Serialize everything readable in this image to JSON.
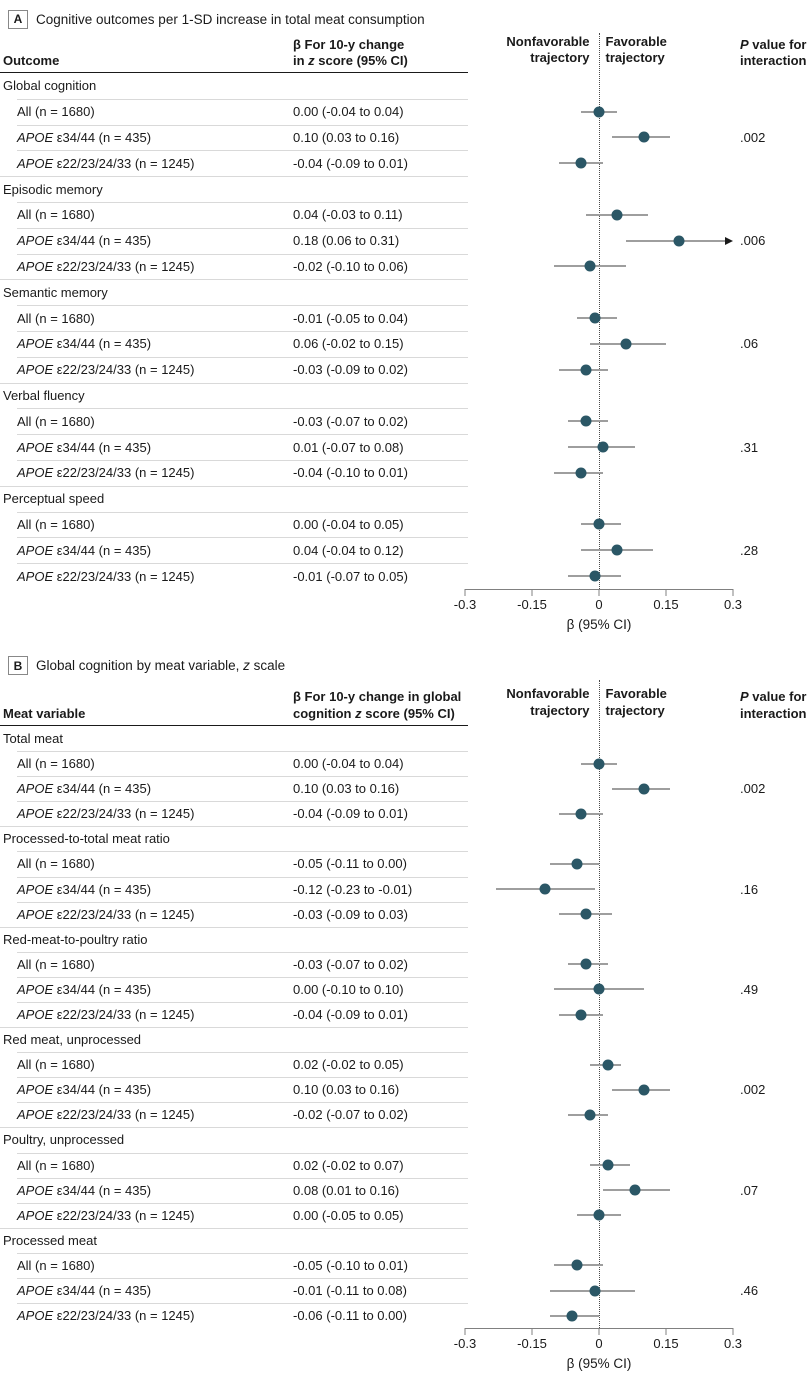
{
  "plot_headers": {
    "nonfavorable_line1": "Nonfavorable",
    "nonfavorable_line2": "trajectory",
    "favorable_line1": "Favorable",
    "favorable_line2": "trajectory",
    "p_line1_italic": "P",
    "p_line1_rest": " value for",
    "p_line2": "interaction"
  },
  "axis": {
    "min": -0.3,
    "max": 0.3,
    "ticks": [
      -0.3,
      -0.15,
      0,
      0.15,
      0.3
    ],
    "tick_labels": [
      "-0.3",
      "-0.15",
      "0",
      "0.15",
      "0.3"
    ],
    "label": "β (95% CI)",
    "zero_reference": 0
  },
  "colors": {
    "point": "#2b5766",
    "ci_line": "#9e9e9e",
    "arrowhead": "#1a1a1a",
    "separator": "#d9d9d9",
    "header_rule": "#1a1a1a",
    "zero_line": "#4a4a4a",
    "axis_line": "#808080"
  },
  "chart_data": [
    {
      "type": "scatter",
      "subtype": "forest-plot",
      "panel_label": "A",
      "title_pre": "Cognitive outcomes per 1-SD increase in total meat consumption",
      "title_italic": "",
      "title_post": "",
      "col1_header": "Outcome",
      "beta_line1": "β For 10-y change",
      "beta_line2_pre": "in ",
      "beta_line2_italic": "z",
      "beta_line2_post": " score (95% CI)",
      "xlim": [
        -0.3,
        0.3
      ],
      "groups": [
        {
          "name": "Global cognition",
          "rows": [
            {
              "label_italic": "",
              "label": "All (n = 1680)",
              "beta": "0.00 (-0.04 to 0.04)",
              "est": 0.0,
              "lo": -0.04,
              "hi": 0.04,
              "p": "",
              "arrow": false
            },
            {
              "label_italic": "APOE",
              "label": " ε34/44 (n = 435)",
              "beta": "0.10 (0.03 to 0.16)",
              "est": 0.1,
              "lo": 0.03,
              "hi": 0.16,
              "p": ".002",
              "arrow": false
            },
            {
              "label_italic": "APOE",
              "label": " ε22/23/24/33 (n = 1245)",
              "beta": "-0.04 (-0.09 to 0.01)",
              "est": -0.04,
              "lo": -0.09,
              "hi": 0.01,
              "p": "",
              "arrow": false
            }
          ]
        },
        {
          "name": "Episodic memory",
          "rows": [
            {
              "label_italic": "",
              "label": "All (n = 1680)",
              "beta": "0.04 (-0.03 to 0.11)",
              "est": 0.04,
              "lo": -0.03,
              "hi": 0.11,
              "p": "",
              "arrow": false
            },
            {
              "label_italic": "APOE",
              "label": " ε34/44 (n = 435)",
              "beta": "0.18 (0.06 to 0.31)",
              "est": 0.18,
              "lo": 0.06,
              "hi": 0.31,
              "p": ".006",
              "arrow": true
            },
            {
              "label_italic": "APOE",
              "label": " ε22/23/24/33 (n = 1245)",
              "beta": "-0.02 (-0.10 to 0.06)",
              "est": -0.02,
              "lo": -0.1,
              "hi": 0.06,
              "p": "",
              "arrow": false
            }
          ]
        },
        {
          "name": "Semantic memory",
          "rows": [
            {
              "label_italic": "",
              "label": "All (n = 1680)",
              "beta": "-0.01 (-0.05 to 0.04)",
              "est": -0.01,
              "lo": -0.05,
              "hi": 0.04,
              "p": "",
              "arrow": false
            },
            {
              "label_italic": "APOE",
              "label": " ε34/44 (n = 435)",
              "beta": "0.06 (-0.02 to 0.15)",
              "est": 0.06,
              "lo": -0.02,
              "hi": 0.15,
              "p": ".06",
              "arrow": false
            },
            {
              "label_italic": "APOE",
              "label": " ε22/23/24/33 (n = 1245)",
              "beta": "-0.03 (-0.09 to 0.02)",
              "est": -0.03,
              "lo": -0.09,
              "hi": 0.02,
              "p": "",
              "arrow": false
            }
          ]
        },
        {
          "name": "Verbal fluency",
          "rows": [
            {
              "label_italic": "",
              "label": "All (n = 1680)",
              "beta": "-0.03 (-0.07 to 0.02)",
              "est": -0.03,
              "lo": -0.07,
              "hi": 0.02,
              "p": "",
              "arrow": false
            },
            {
              "label_italic": "APOE",
              "label": " ε34/44 (n = 435)",
              "beta": "0.01 (-0.07 to 0.08)",
              "est": 0.01,
              "lo": -0.07,
              "hi": 0.08,
              "p": ".31",
              "arrow": false
            },
            {
              "label_italic": "APOE",
              "label": " ε22/23/24/33 (n = 1245)",
              "beta": "-0.04 (-0.10 to 0.01)",
              "est": -0.04,
              "lo": -0.1,
              "hi": 0.01,
              "p": "",
              "arrow": false
            }
          ]
        },
        {
          "name": "Perceptual speed",
          "rows": [
            {
              "label_italic": "",
              "label": "All (n = 1680)",
              "beta": "0.00 (-0.04 to 0.05)",
              "est": 0.0,
              "lo": -0.04,
              "hi": 0.05,
              "p": "",
              "arrow": false
            },
            {
              "label_italic": "APOE",
              "label": " ε34/44 (n = 435)",
              "beta": "0.04 (-0.04 to 0.12)",
              "est": 0.04,
              "lo": -0.04,
              "hi": 0.12,
              "p": ".28",
              "arrow": false
            },
            {
              "label_italic": "APOE",
              "label": " ε22/23/24/33 (n = 1245)",
              "beta": "-0.01 (-0.07 to 0.05)",
              "est": -0.01,
              "lo": -0.07,
              "hi": 0.05,
              "p": "",
              "arrow": false
            }
          ]
        }
      ]
    },
    {
      "type": "scatter",
      "subtype": "forest-plot",
      "panel_label": "B",
      "title_pre": "Global cognition by meat variable, ",
      "title_italic": "z",
      "title_post": " scale",
      "col1_header": "Meat variable",
      "beta_line1": "β For 10-y change in global",
      "beta_line2_pre": "cognition ",
      "beta_line2_italic": "z",
      "beta_line2_post": " score (95% CI)",
      "xlim": [
        -0.3,
        0.3
      ],
      "groups": [
        {
          "name": "Total meat",
          "rows": [
            {
              "label_italic": "",
              "label": "All (n = 1680)",
              "beta": "0.00 (-0.04 to 0.04)",
              "est": 0.0,
              "lo": -0.04,
              "hi": 0.04,
              "p": "",
              "arrow": false
            },
            {
              "label_italic": "APOE",
              "label": " ε34/44 (n = 435)",
              "beta": "0.10 (0.03 to 0.16)",
              "est": 0.1,
              "lo": 0.03,
              "hi": 0.16,
              "p": ".002",
              "arrow": false
            },
            {
              "label_italic": "APOE",
              "label": " ε22/23/24/33 (n = 1245)",
              "beta": "-0.04 (-0.09 to 0.01)",
              "est": -0.04,
              "lo": -0.09,
              "hi": 0.01,
              "p": "",
              "arrow": false
            }
          ]
        },
        {
          "name": "Processed-to-total meat ratio",
          "rows": [
            {
              "label_italic": "",
              "label": "All (n = 1680)",
              "beta": "-0.05 (-0.11 to 0.00)",
              "est": -0.05,
              "lo": -0.11,
              "hi": 0.0,
              "p": "",
              "arrow": false
            },
            {
              "label_italic": "APOE",
              "label": " ε34/44 (n = 435)",
              "beta": "-0.12 (-0.23 to -0.01)",
              "est": -0.12,
              "lo": -0.23,
              "hi": -0.01,
              "p": ".16",
              "arrow": false
            },
            {
              "label_italic": "APOE",
              "label": " ε22/23/24/33 (n = 1245)",
              "beta": "-0.03 (-0.09 to 0.03)",
              "est": -0.03,
              "lo": -0.09,
              "hi": 0.03,
              "p": "",
              "arrow": false
            }
          ]
        },
        {
          "name": "Red-meat-to-poultry ratio",
          "rows": [
            {
              "label_italic": "",
              "label": "All (n = 1680)",
              "beta": "-0.03 (-0.07 to 0.02)",
              "est": -0.03,
              "lo": -0.07,
              "hi": 0.02,
              "p": "",
              "arrow": false
            },
            {
              "label_italic": "APOE",
              "label": " ε34/44 (n = 435)",
              "beta": "0.00 (-0.10 to 0.10)",
              "est": 0.0,
              "lo": -0.1,
              "hi": 0.1,
              "p": ".49",
              "arrow": false
            },
            {
              "label_italic": "APOE",
              "label": " ε22/23/24/33 (n = 1245)",
              "beta": "-0.04 (-0.09 to 0.01)",
              "est": -0.04,
              "lo": -0.09,
              "hi": 0.01,
              "p": "",
              "arrow": false
            }
          ]
        },
        {
          "name": "Red meat, unprocessed",
          "rows": [
            {
              "label_italic": "",
              "label": "All (n = 1680)",
              "beta": "0.02 (-0.02 to 0.05)",
              "est": 0.02,
              "lo": -0.02,
              "hi": 0.05,
              "p": "",
              "arrow": false
            },
            {
              "label_italic": "APOE",
              "label": " ε34/44 (n = 435)",
              "beta": "0.10 (0.03 to 0.16)",
              "est": 0.1,
              "lo": 0.03,
              "hi": 0.16,
              "p": ".002",
              "arrow": false
            },
            {
              "label_italic": "APOE",
              "label": " ε22/23/24/33 (n = 1245)",
              "beta": "-0.02 (-0.07 to 0.02)",
              "est": -0.02,
              "lo": -0.07,
              "hi": 0.02,
              "p": "",
              "arrow": false
            }
          ]
        },
        {
          "name": "Poultry, unprocessed",
          "rows": [
            {
              "label_italic": "",
              "label": "All (n = 1680)",
              "beta": "0.02 (-0.02 to 0.07)",
              "est": 0.02,
              "lo": -0.02,
              "hi": 0.07,
              "p": "",
              "arrow": false
            },
            {
              "label_italic": "APOE",
              "label": " ε34/44 (n = 435)",
              "beta": "0.08 (0.01 to 0.16)",
              "est": 0.08,
              "lo": 0.01,
              "hi": 0.16,
              "p": ".07",
              "arrow": false
            },
            {
              "label_italic": "APOE",
              "label": " ε22/23/24/33 (n = 1245)",
              "beta": "0.00 (-0.05 to 0.05)",
              "est": 0.0,
              "lo": -0.05,
              "hi": 0.05,
              "p": "",
              "arrow": false
            }
          ]
        },
        {
          "name": "Processed meat",
          "rows": [
            {
              "label_italic": "",
              "label": "All (n = 1680)",
              "beta": "-0.05 (-0.10 to 0.01)",
              "est": -0.05,
              "lo": -0.1,
              "hi": 0.01,
              "p": "",
              "arrow": false
            },
            {
              "label_italic": "APOE",
              "label": " ε34/44 (n = 435)",
              "beta": "-0.01 (-0.11 to 0.08)",
              "est": -0.01,
              "lo": -0.11,
              "hi": 0.08,
              "p": ".46",
              "arrow": false
            },
            {
              "label_italic": "APOE",
              "label": " ε22/23/24/33 (n = 1245)",
              "beta": "-0.06 (-0.11 to 0.00)",
              "est": -0.06,
              "lo": -0.11,
              "hi": 0.0,
              "p": "",
              "arrow": false
            }
          ]
        }
      ]
    }
  ]
}
